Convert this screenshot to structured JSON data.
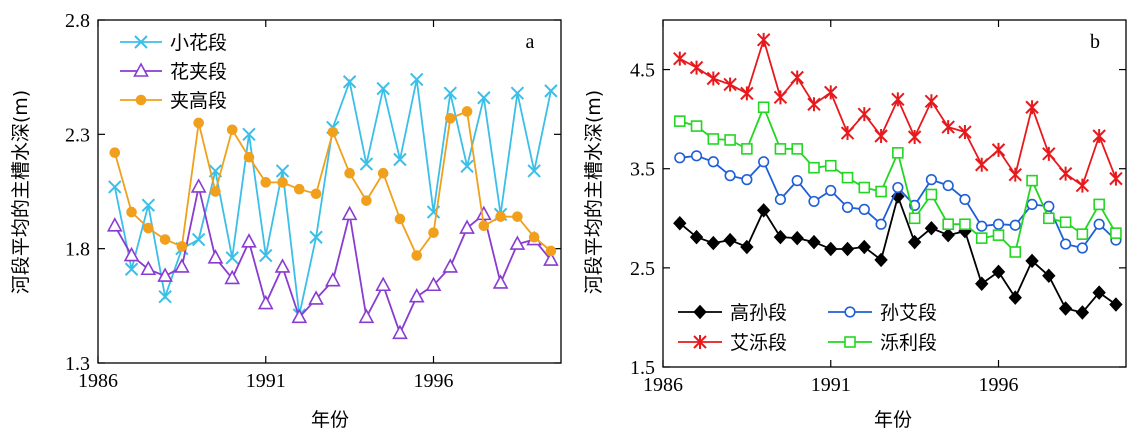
{
  "chart_data": [
    {
      "type": "line",
      "panel_label": "a",
      "xlabel": "年份",
      "ylabel": "",
      "xlim": [
        1986,
        1999.8
      ],
      "ylim": [
        1.3,
        2.8
      ],
      "xticks": [
        1986,
        1991,
        1996
      ],
      "yticks": [
        1.3,
        1.8,
        2.3,
        2.8
      ],
      "ytick_labels": [
        "1.3",
        "1.8",
        "2.3",
        "2.8"
      ],
      "legend_position": "top-left",
      "x": [
        1986.5,
        1987,
        1987.5,
        1988,
        1988.5,
        1989,
        1989.5,
        1990,
        1990.5,
        1991,
        1991.5,
        1992,
        1992.5,
        1993,
        1993.5,
        1994,
        1994.5,
        1995,
        1995.5,
        1996,
        1996.5,
        1997,
        1997.5,
        1998,
        1998.5,
        1999,
        1999.5
      ],
      "series": [
        {
          "name": "小花段",
          "color": "#3bbfe8",
          "marker": "x",
          "values": [
            2.07,
            1.71,
            1.99,
            1.59,
            1.8,
            1.84,
            2.14,
            1.76,
            2.3,
            1.77,
            2.14,
            1.51,
            1.85,
            2.33,
            2.53,
            2.17,
            2.5,
            2.19,
            2.54,
            1.96,
            2.48,
            2.16,
            2.46,
            1.95,
            2.48,
            2.14,
            2.49
          ]
        },
        {
          "name": "花夹段",
          "color": "#8a3cd0",
          "marker": "triangle",
          "values": [
            1.9,
            1.77,
            1.71,
            1.68,
            1.72,
            2.07,
            1.76,
            1.67,
            1.83,
            1.56,
            1.72,
            1.5,
            1.58,
            1.66,
            1.95,
            1.5,
            1.64,
            1.43,
            1.59,
            1.64,
            1.72,
            1.89,
            1.95,
            1.65,
            1.82,
            1.84,
            1.75
          ]
        },
        {
          "name": "夹高段",
          "color": "#f0a01c",
          "marker": "circle-filled",
          "values": [
            2.22,
            1.96,
            1.89,
            1.84,
            1.81,
            2.35,
            2.05,
            2.32,
            2.2,
            2.09,
            2.09,
            2.06,
            2.04,
            2.31,
            2.13,
            2.01,
            2.13,
            1.93,
            1.77,
            1.87,
            2.37,
            2.4,
            1.9,
            1.94,
            1.94,
            1.85,
            1.79
          ]
        }
      ]
    },
    {
      "type": "line",
      "panel_label": "b",
      "xlabel": "年份",
      "ylabel": "",
      "xlim": [
        1986,
        1999.8
      ],
      "ylim": [
        1.5,
        5.0
      ],
      "xticks": [
        1986,
        1991,
        1996
      ],
      "yticks": [
        1.5,
        2.5,
        3.5,
        4.5
      ],
      "ytick_labels": [
        "1.5",
        "2.5",
        "3.5",
        "4.5"
      ],
      "legend_position": "bottom-left",
      "x": [
        1986.5,
        1987,
        1987.5,
        1988,
        1988.5,
        1989,
        1989.5,
        1990,
        1990.5,
        1991,
        1991.5,
        1992,
        1992.5,
        1993,
        1993.5,
        1994,
        1994.5,
        1995,
        1995.5,
        1996,
        1996.5,
        1997,
        1997.5,
        1998,
        1998.5,
        1999,
        1999.5
      ],
      "series": [
        {
          "name": "高孙段",
          "color": "#000000",
          "marker": "diamond-filled",
          "values": [
            2.95,
            2.81,
            2.75,
            2.78,
            2.71,
            3.08,
            2.81,
            2.8,
            2.76,
            2.69,
            2.69,
            2.71,
            2.58,
            3.22,
            2.76,
            2.9,
            2.83,
            2.87,
            2.34,
            2.46,
            2.2,
            2.57,
            2.42,
            2.09,
            2.05,
            2.25,
            2.13
          ]
        },
        {
          "name": "孙艾段",
          "color": "#1f5fd6",
          "marker": "circle-open",
          "values": [
            3.61,
            3.63,
            3.57,
            3.43,
            3.39,
            3.57,
            3.19,
            3.38,
            3.17,
            3.28,
            3.11,
            3.09,
            2.94,
            3.31,
            3.13,
            3.39,
            3.33,
            3.19,
            2.92,
            2.94,
            2.93,
            3.14,
            3.12,
            2.74,
            2.7,
            2.94,
            2.78
          ]
        },
        {
          "name": "艾泺段",
          "color": "#e8191c",
          "marker": "star",
          "values": [
            4.61,
            4.52,
            4.41,
            4.35,
            4.26,
            4.8,
            4.22,
            4.42,
            4.15,
            4.27,
            3.86,
            4.05,
            3.83,
            4.2,
            3.82,
            4.18,
            3.92,
            3.87,
            3.54,
            3.69,
            3.44,
            4.12,
            3.65,
            3.45,
            3.33,
            3.83,
            3.4
          ]
        },
        {
          "name": "泺利段",
          "color": "#22d622",
          "marker": "square-open",
          "values": [
            3.98,
            3.93,
            3.8,
            3.79,
            3.7,
            4.12,
            3.7,
            3.7,
            3.51,
            3.53,
            3.41,
            3.31,
            3.27,
            3.66,
            3.0,
            3.24,
            2.94,
            2.94,
            2.8,
            2.83,
            2.66,
            3.38,
            3.0,
            2.96,
            2.84,
            3.14,
            2.85
          ]
        }
      ]
    }
  ],
  "shared_ylabel": "河段平均的主槽水深(m)"
}
